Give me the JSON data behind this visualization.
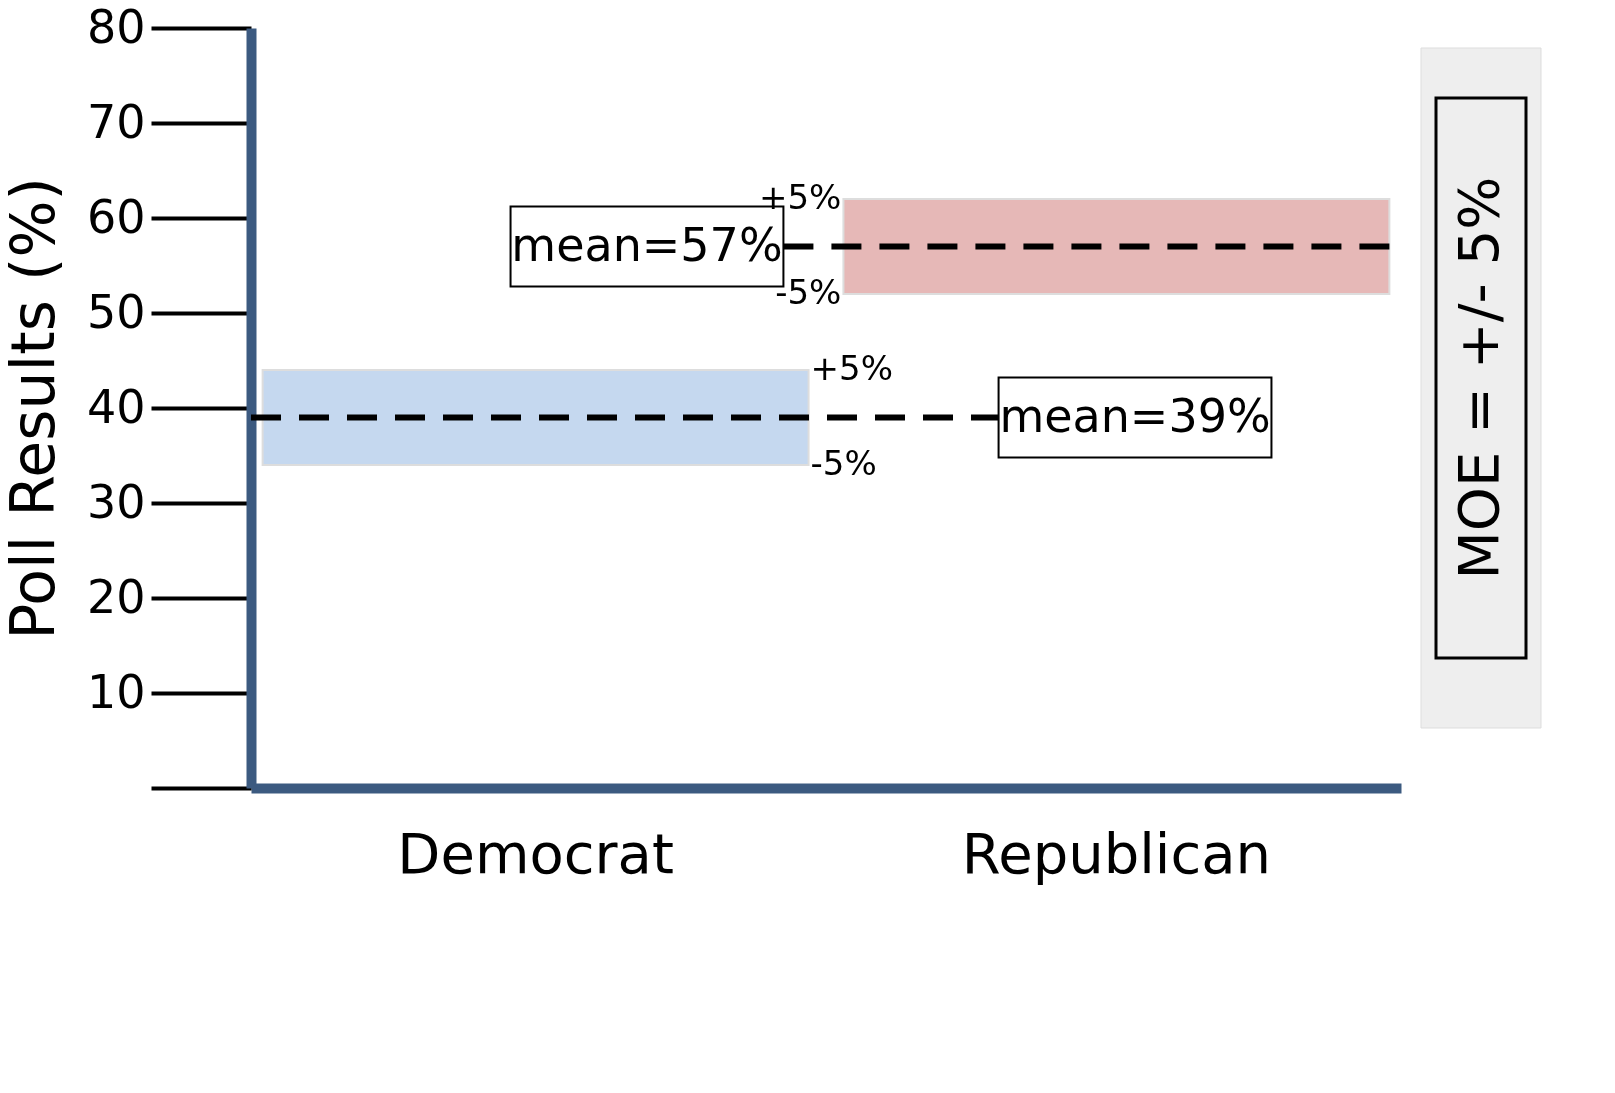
{
  "chart_data": {
    "type": "bar",
    "ylabel": "Poll Results (%)",
    "categories": [
      "Democrat",
      "Republican"
    ],
    "values": [
      10,
      10
    ],
    "base": [
      34,
      52
    ],
    "colors": [
      "#c5d8ef",
      "#e6b8b7"
    ],
    "ylim": [
      0,
      80
    ],
    "yticks": [
      {
        "value": 0,
        "label": null
      },
      10,
      20,
      30,
      40,
      50,
      60,
      70,
      80
    ],
    "grid": false,
    "ref_lines": [
      {
        "axis": "y",
        "value": 39,
        "label": "mean=39%",
        "line_style": "dashed",
        "color": "#000000"
      },
      {
        "axis": "y",
        "value": 57,
        "label": "mean=57%",
        "line_style": "dashed",
        "color": "#000000"
      }
    ],
    "annotations": [
      "+5%",
      "-5%",
      "+5%",
      "-5%",
      "MOE = +/- 5%"
    ]
  }
}
